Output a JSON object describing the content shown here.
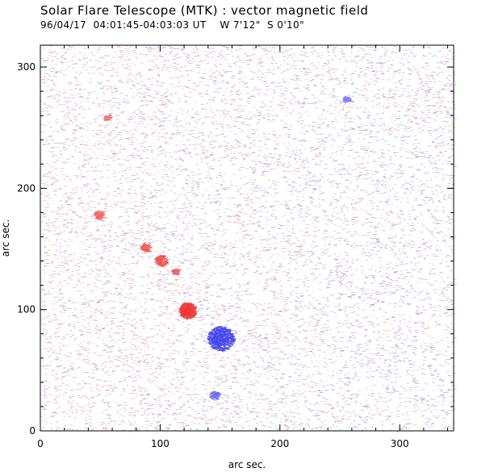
{
  "header": {
    "title": "Solar Flare Telescope (MTK) : vector magnetic field",
    "subtitle": "96/04/17  04:01:45-04:03:03 UT    W 7'12\"  S 0'10\""
  },
  "plot": {
    "xlabel": "arc sec.",
    "ylabel": "arc sec.",
    "xlim": [
      0,
      345
    ],
    "ylim": [
      0,
      318
    ],
    "x_ticks": [
      0,
      100,
      200,
      300
    ],
    "y_ticks": [
      0,
      100,
      200,
      300
    ],
    "positive_color": "#e86a6a",
    "negative_color": "#6a6ae8",
    "blobs": [
      {
        "polarity": "positive",
        "x": 122,
        "y": 99,
        "r": 7,
        "strength": 1.0
      },
      {
        "polarity": "positive",
        "x": 100,
        "y": 140,
        "r": 5,
        "strength": 0.6
      },
      {
        "polarity": "positive",
        "x": 87,
        "y": 151,
        "r": 4,
        "strength": 0.5
      },
      {
        "polarity": "positive",
        "x": 112,
        "y": 131,
        "r": 3,
        "strength": 0.45
      },
      {
        "polarity": "positive",
        "x": 48,
        "y": 178,
        "r": 4,
        "strength": 0.45
      },
      {
        "polarity": "positive",
        "x": 55,
        "y": 258,
        "r": 3,
        "strength": 0.3
      },
      {
        "polarity": "negative",
        "x": 150,
        "y": 76,
        "r": 11,
        "strength": 1.0
      },
      {
        "polarity": "negative",
        "x": 145,
        "y": 29,
        "r": 4,
        "strength": 0.45
      },
      {
        "polarity": "negative",
        "x": 255,
        "y": 273,
        "r": 3,
        "strength": 0.3
      }
    ]
  }
}
